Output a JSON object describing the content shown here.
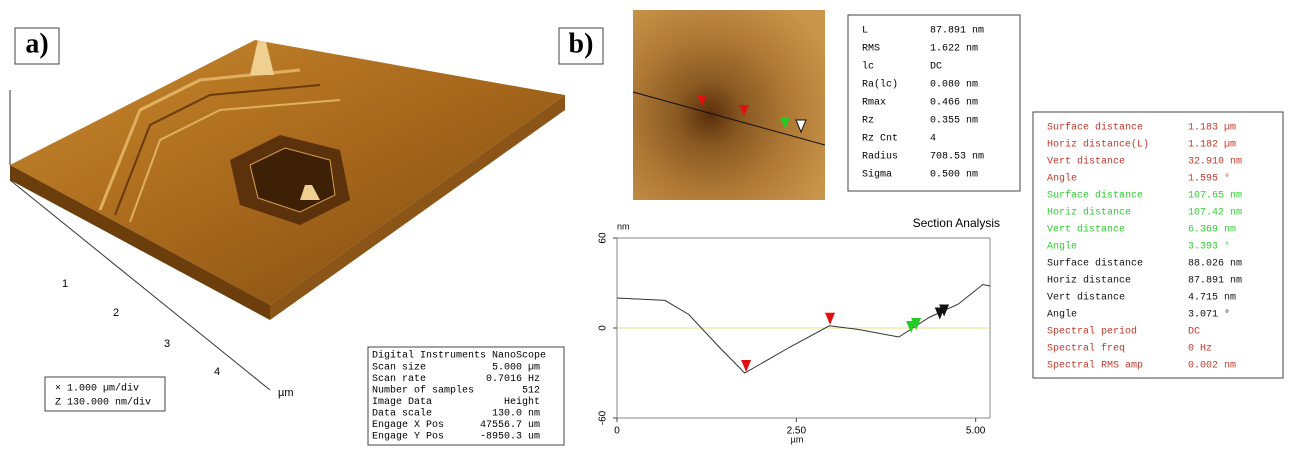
{
  "panel_a": {
    "label": "a)",
    "axis_labels": [
      "1",
      "2",
      "3",
      "4"
    ],
    "axis_unit": "µm",
    "scale_legend": [
      "× 1.000 µm/div",
      "Z 130.000 nm/div"
    ],
    "info_table": {
      "header": "Digital Instruments NanoScope",
      "rows": [
        [
          "Scan size",
          "5.000 µm"
        ],
        [
          "Scan rate",
          "0.7016 Hz"
        ],
        [
          "Number of samples",
          "512"
        ],
        [
          "Image Data",
          "Height"
        ],
        [
          "Data scale",
          "130.0 nm"
        ],
        [
          "Engage X Pos",
          "47556.7 um"
        ],
        [
          "Engage Y Pos",
          "-8950.3 um"
        ]
      ]
    }
  },
  "panel_b": {
    "label": "b)",
    "stats_table": {
      "rows": [
        [
          "L",
          "87.891 nm"
        ],
        [
          "RMS",
          "1.622 nm"
        ],
        [
          "lc",
          "DC"
        ],
        [
          "Ra(lc)",
          "0.080 nm"
        ],
        [
          "Rmax",
          "0.466 nm"
        ],
        [
          "Rz",
          "0.355 nm"
        ],
        [
          "Rz Cnt",
          "4"
        ],
        [
          "Radius",
          "708.53 nm"
        ],
        [
          "Sigma",
          "0.500 nm"
        ]
      ]
    },
    "measurements": [
      {
        "color": "#c0392b",
        "rows": [
          [
            "Surface distance",
            "1.183 µm"
          ],
          [
            "Horiz distance(L)",
            "1.182 µm"
          ],
          [
            "Vert distance",
            "32.910 nm"
          ],
          [
            "Angle",
            "1.595 °"
          ]
        ]
      },
      {
        "color": "#33cc33",
        "rows": [
          [
            "Surface distance",
            "107.65 nm"
          ],
          [
            "Horiz distance",
            "107.42 nm"
          ],
          [
            "Vert distance",
            "6.369 nm"
          ],
          [
            "Angle",
            "3.393 °"
          ]
        ]
      },
      {
        "color": "#111111",
        "rows": [
          [
            "Surface distance",
            "88.026 nm"
          ],
          [
            "Horiz distance",
            "87.891 nm"
          ],
          [
            "Vert distance",
            "4.715 nm"
          ],
          [
            "Angle",
            "3.071 °"
          ]
        ]
      },
      {
        "color": "#c0392b",
        "rows": [
          [
            "Spectral period",
            "DC"
          ],
          [
            "Spectral freq",
            "0 Hz"
          ],
          [
            "Spectral RMS amp",
            "0.002 nm"
          ]
        ]
      }
    ]
  },
  "chart_data": {
    "type": "line",
    "title": "Section Analysis",
    "y_unit": "nm",
    "x_unit": "µm",
    "x": [
      0,
      0.67,
      1.0,
      1.43,
      1.78,
      2.0,
      2.4,
      2.96,
      3.37,
      3.93,
      4.35,
      4.76,
      5.1,
      5.2
    ],
    "values": [
      20,
      18.4,
      9,
      -13,
      -30,
      -24,
      -13,
      1.5,
      -1,
      -6,
      7,
      16,
      29,
      28
    ],
    "color": "#333333",
    "zero_line_color": "#e8e08a",
    "cursors": [
      {
        "x": 1.8,
        "y": -30,
        "color": "#e01010"
      },
      {
        "x": 2.97,
        "y": 1.5,
        "color": "#e01010"
      },
      {
        "x": 4.1,
        "y": -4,
        "color": "#22cc22"
      },
      {
        "x": 4.17,
        "y": -2,
        "color": "#22cc22"
      },
      {
        "x": 4.5,
        "y": 5,
        "color": "#111111"
      },
      {
        "x": 4.56,
        "y": 7,
        "color": "#111111"
      }
    ],
    "xlim": [
      0,
      5.2
    ],
    "ylim": [
      -60,
      60
    ],
    "xticks": [
      0,
      {
        "value": 2.5,
        "label": "2.50"
      },
      {
        "value": 5,
        "label": "5.00"
      }
    ],
    "yticks": [
      -60,
      0,
      60
    ]
  }
}
